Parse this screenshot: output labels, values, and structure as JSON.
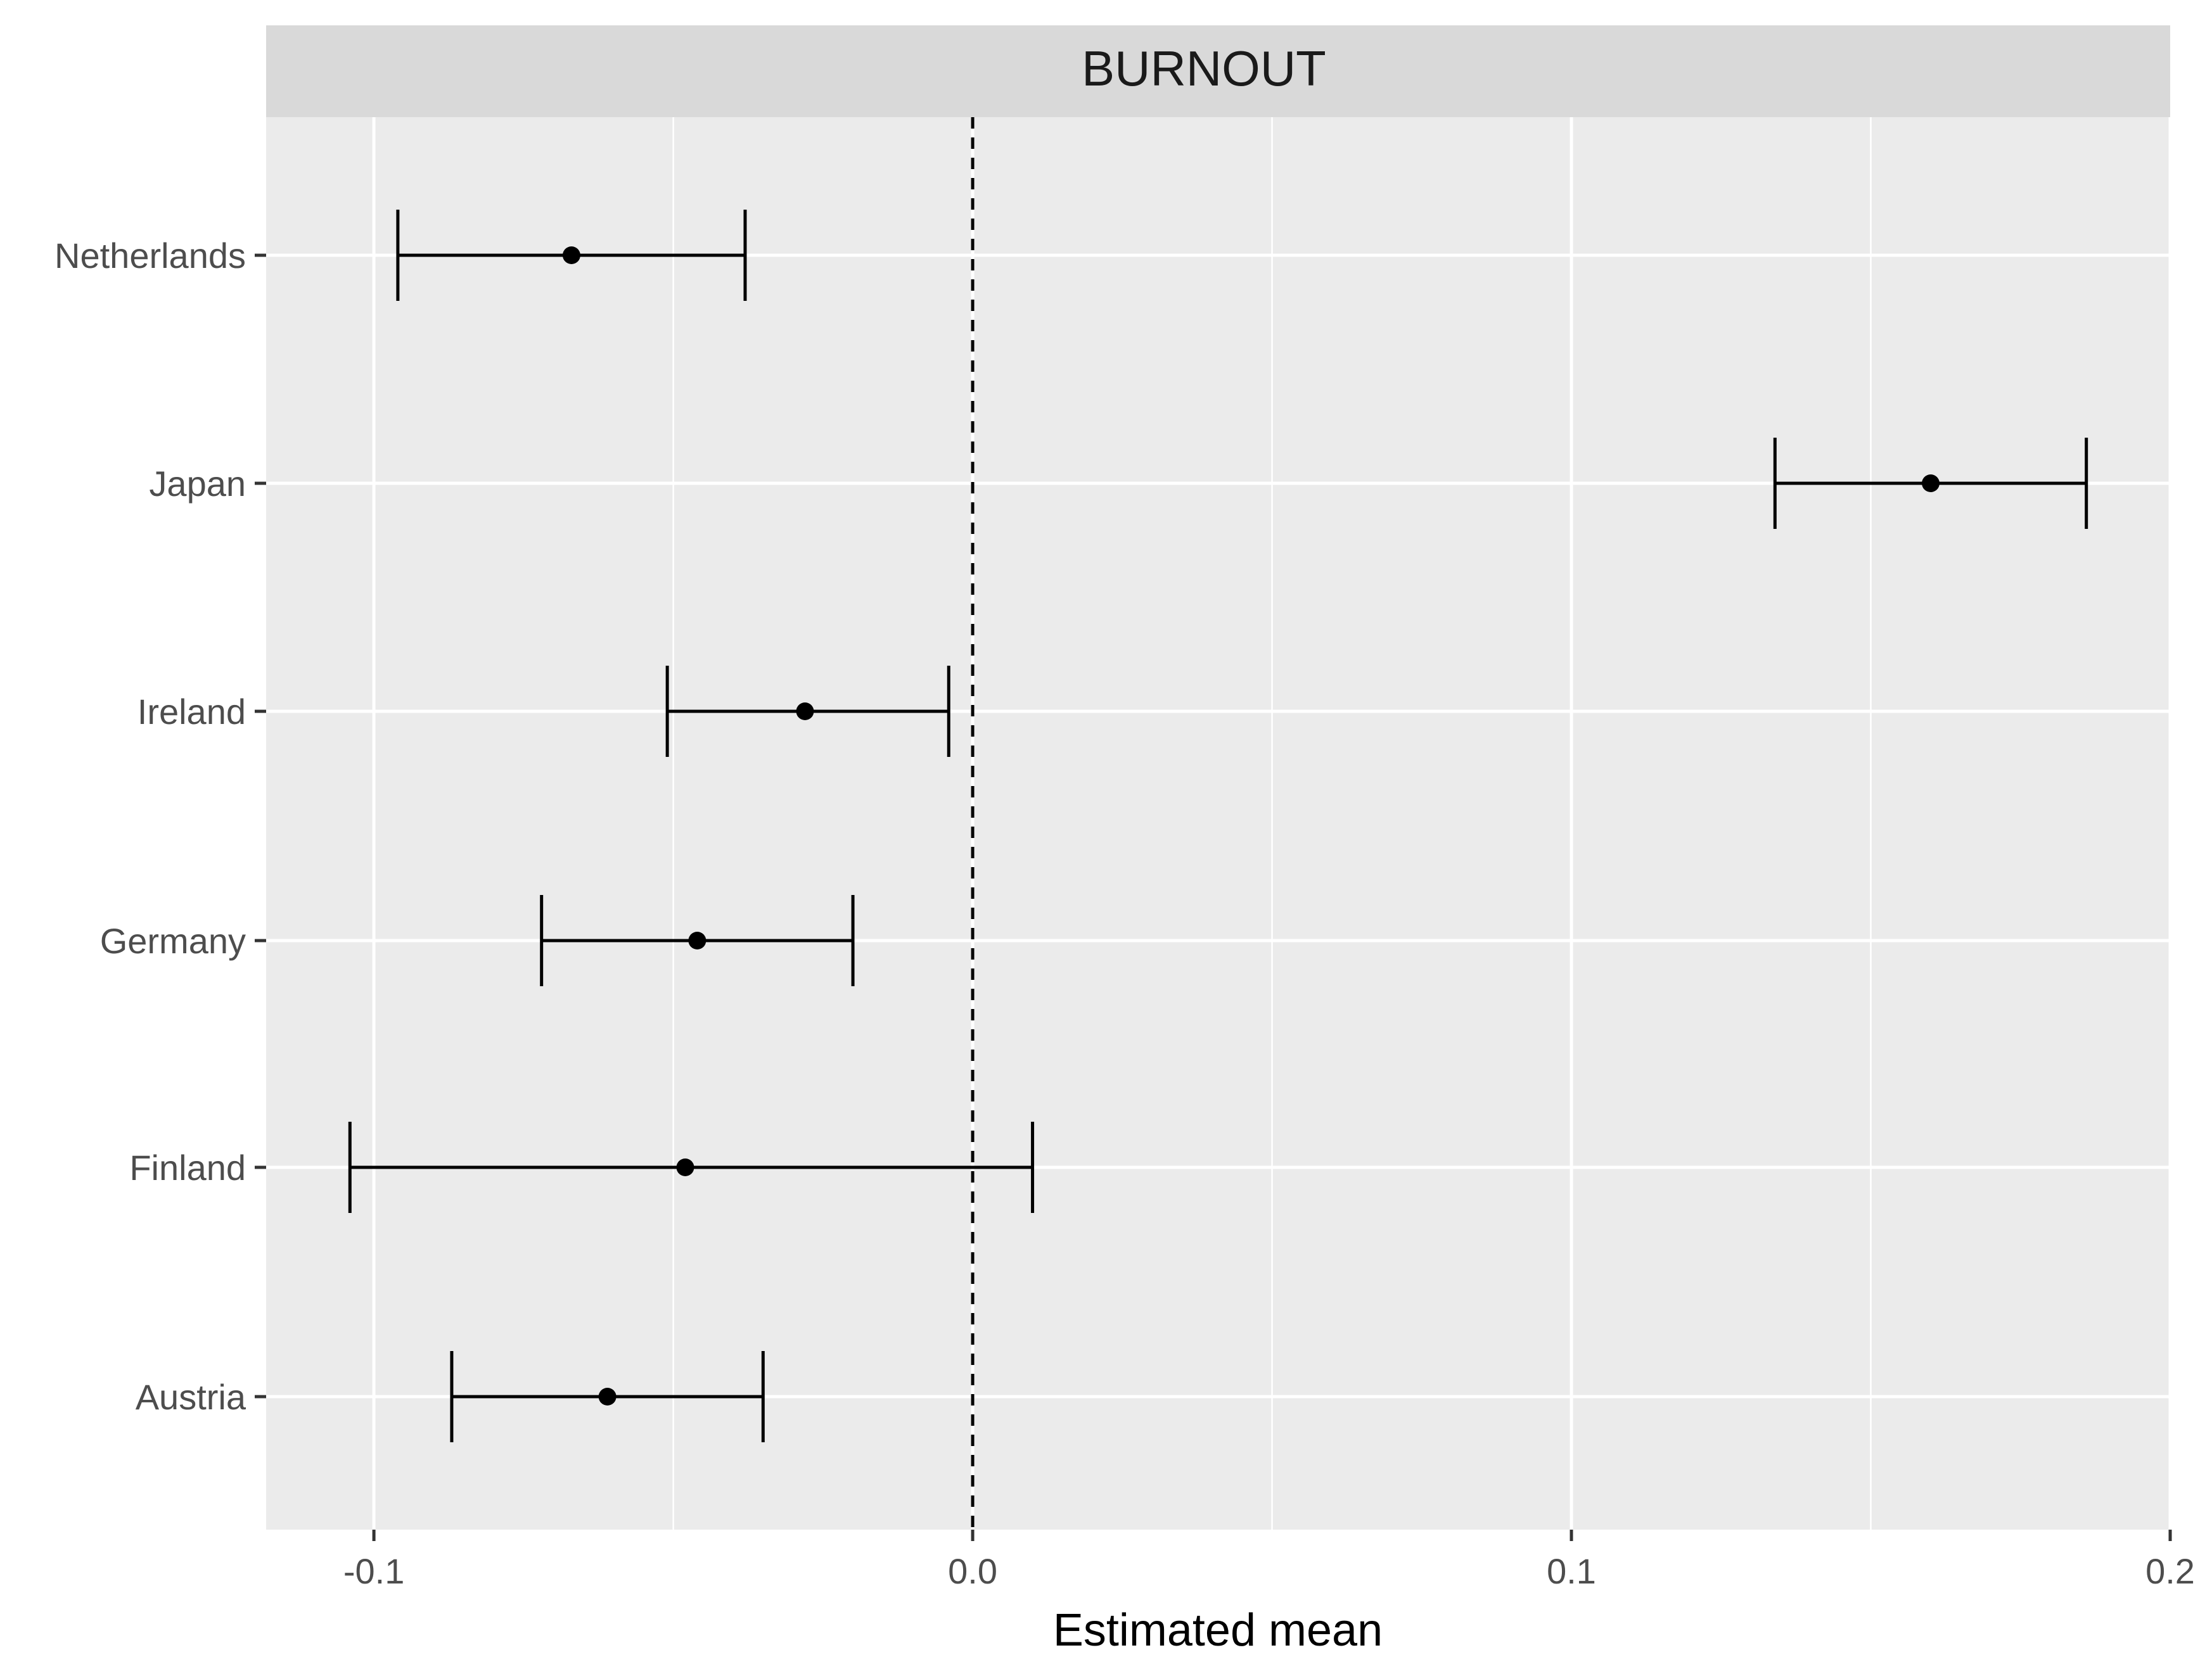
{
  "chart_data": {
    "type": "errorbar",
    "facet_title": "BURNOUT",
    "xlabel": "Estimated mean",
    "ylabel": "",
    "xlim": [
      -0.118,
      0.2
    ],
    "xticks": [
      -0.1,
      0.0,
      0.1,
      0.2
    ],
    "xtick_labels": [
      "-0.1",
      "0.0",
      "0.1",
      "0.2"
    ],
    "reference_line": 0.0,
    "grid": true,
    "categories": [
      "Netherlands",
      "Japan",
      "Ireland",
      "Germany",
      "Finland",
      "Austria"
    ],
    "estimates": [
      -0.067,
      0.16,
      -0.028,
      -0.046,
      -0.048,
      -0.061
    ],
    "lower": [
      -0.096,
      0.134,
      -0.051,
      -0.072,
      -0.104,
      -0.087
    ],
    "upper": [
      -0.038,
      0.186,
      -0.004,
      -0.02,
      0.01,
      -0.035
    ]
  },
  "colors": {
    "panel_bg": "#ebebeb",
    "strip_bg": "#d9d9d9",
    "grid": "#ffffff",
    "marks": "#000000",
    "text": "#4d4d4d"
  }
}
